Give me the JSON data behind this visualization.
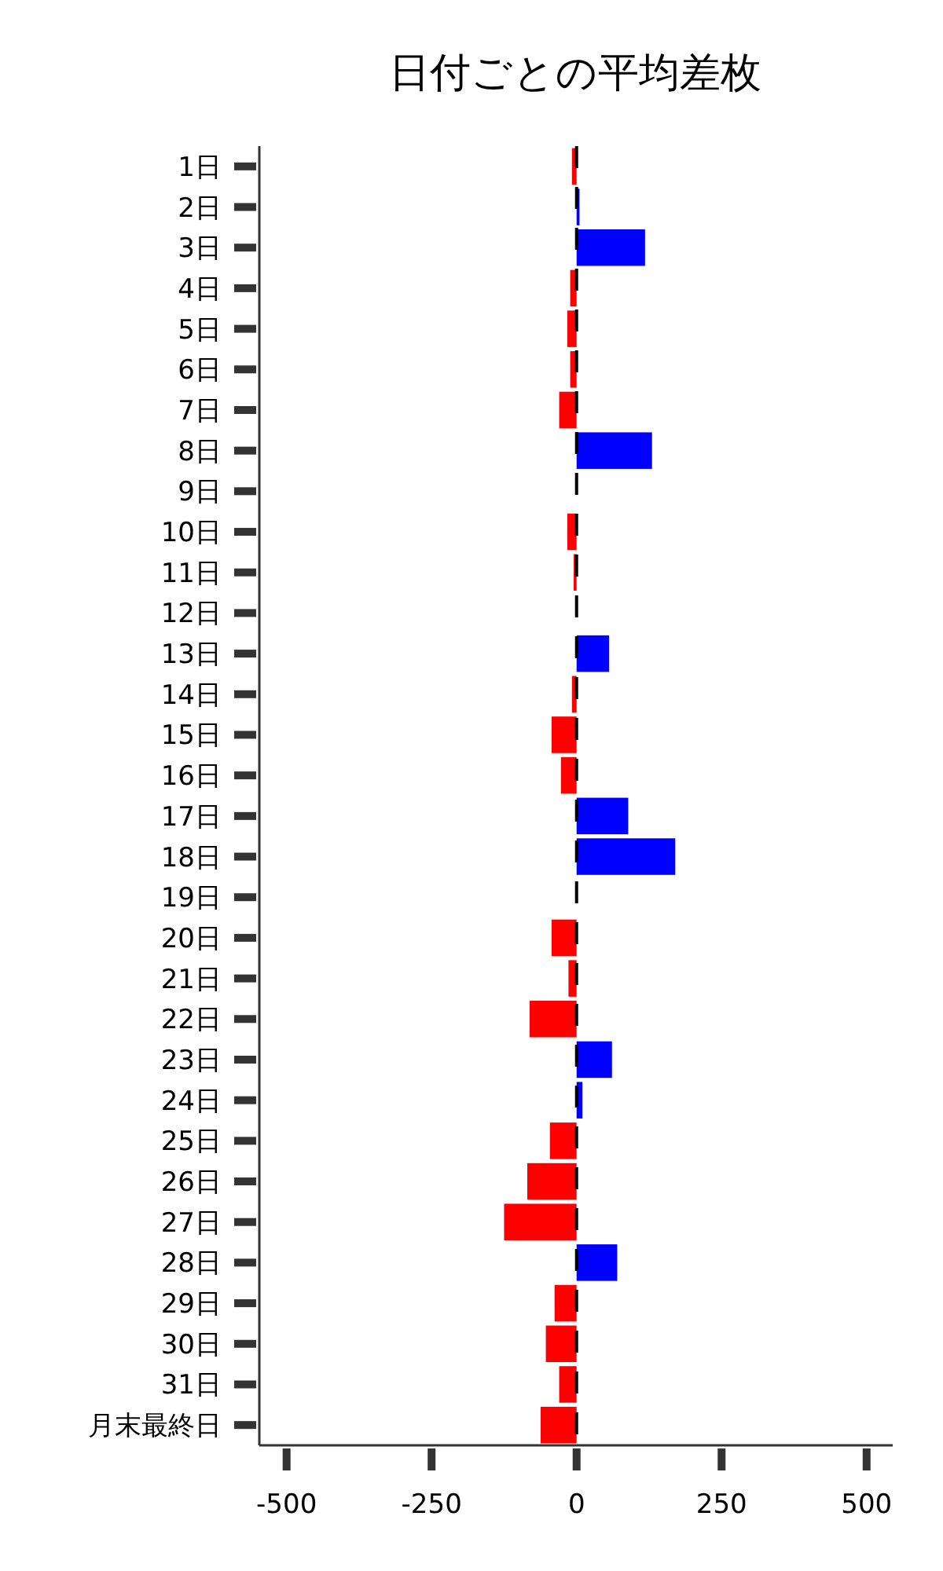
{
  "chart_data": {
    "type": "bar",
    "orientation": "horizontal",
    "title": "日付ごとの平均差枚",
    "categories": [
      "1日",
      "2日",
      "3日",
      "4日",
      "5日",
      "6日",
      "7日",
      "8日",
      "9日",
      "10日",
      "11日",
      "12日",
      "13日",
      "14日",
      "15日",
      "16日",
      "17日",
      "18日",
      "19日",
      "20日",
      "21日",
      "22日",
      "23日",
      "24日",
      "25日",
      "26日",
      "27日",
      "28日",
      "29日",
      "30日",
      "31日",
      "月末最終日"
    ],
    "values": [
      -8,
      5,
      118,
      -11,
      -16,
      -11,
      -30,
      130,
      null,
      -16,
      -5,
      0,
      56,
      -8,
      -43,
      -27,
      89,
      170,
      null,
      -43,
      -14,
      -81,
      61,
      10,
      -46,
      -85,
      -125,
      70,
      -38,
      -53,
      -30,
      -62
    ],
    "colors": [
      "#ff0000",
      "#0000ff",
      "#0000ff",
      "#ff0000",
      "#ff0000",
      "#ff0000",
      "#ff0000",
      "#0000ff",
      null,
      "#ff0000",
      "#ff0000",
      "#0000ff",
      "#0000ff",
      "#ff0000",
      "#ff0000",
      "#ff0000",
      "#0000ff",
      "#0000ff",
      null,
      "#ff0000",
      "#ff0000",
      "#ff0000",
      "#0000ff",
      "#0000ff",
      "#ff0000",
      "#ff0000",
      "#ff0000",
      "#0000ff",
      "#ff0000",
      "#ff0000",
      "#ff0000",
      "#ff0000"
    ],
    "xlim": [
      -547,
      545
    ],
    "xticks": [
      -500,
      -250,
      0,
      250,
      500
    ],
    "ref_lines": [
      {
        "axis": "x",
        "value": 0,
        "color": "#000000",
        "line_style": "dashed"
      }
    ]
  }
}
